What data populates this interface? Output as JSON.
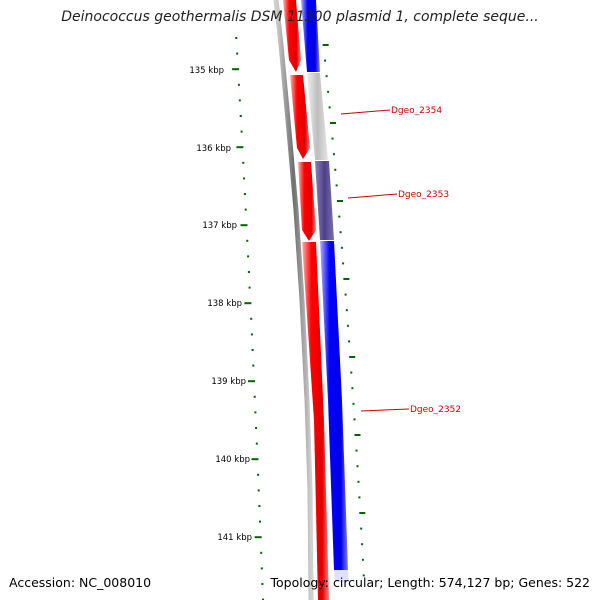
{
  "title": "Deinococcus geothermalis DSM 11300 plasmid 1, complete seque...",
  "accession_text": "Accession: NC_008010",
  "topology_text": "Topology: circular; Length: 574,127 bp; Genes: 522",
  "ticks": [
    {
      "label": "135 kbp"
    },
    {
      "label": "136 kbp"
    },
    {
      "label": "137 kbp"
    },
    {
      "label": "138 kbp"
    },
    {
      "label": "139 kbp"
    },
    {
      "label": "140 kbp"
    },
    {
      "label": "141 kbp"
    }
  ],
  "gene_labels": [
    {
      "label": "Dgeo_2354"
    },
    {
      "label": "Dgeo_2353"
    },
    {
      "label": "Dgeo_2352"
    }
  ],
  "colors": {
    "forward_strand": "#ff0000",
    "reverse_strand": "#0000ff",
    "highlight_gray": "#c0c0c0",
    "highlight_purple": "#5a4b92",
    "backbone": "#7a7a7a",
    "tick": "#006400",
    "gene_label": "#d00000"
  }
}
